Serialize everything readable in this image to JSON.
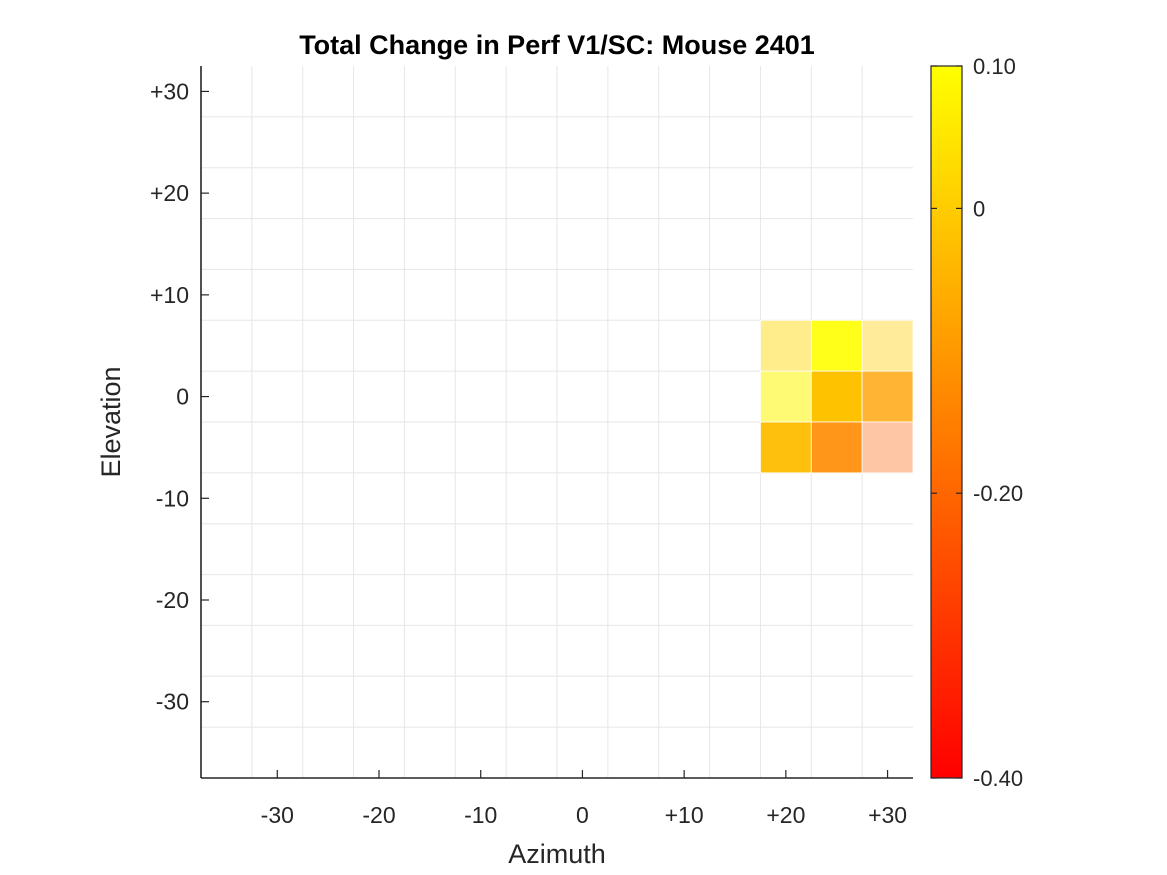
{
  "chart_data": {
    "type": "heatmap",
    "title": "Total Change in Perf V1/SC: Mouse 2401",
    "xlabel": "Azimuth",
    "ylabel": "Elevation",
    "xlim": [
      -37.5,
      32.5
    ],
    "ylim": [
      -37.5,
      32.5
    ],
    "grid": true,
    "x_ticks": [
      {
        "value": -30,
        "label": "-30"
      },
      {
        "value": -20,
        "label": "-20"
      },
      {
        "value": -10,
        "label": "-10"
      },
      {
        "value": 0,
        "label": "0"
      },
      {
        "value": 10,
        "label": "+10"
      },
      {
        "value": 20,
        "label": "+20"
      },
      {
        "value": 30,
        "label": "+30"
      }
    ],
    "y_ticks": [
      {
        "value": 30,
        "label": "+30"
      },
      {
        "value": 20,
        "label": "+20"
      },
      {
        "value": 10,
        "label": "+10"
      },
      {
        "value": 0,
        "label": "0"
      },
      {
        "value": -10,
        "label": "-10"
      },
      {
        "value": -20,
        "label": "-20"
      },
      {
        "value": -30,
        "label": "-30"
      }
    ],
    "cell_size": 5,
    "cells": [
      {
        "az": 20,
        "el": 5,
        "value": 0.02,
        "opacity": 0.45
      },
      {
        "az": 25,
        "el": 5,
        "value": 0.1,
        "opacity": 0.9
      },
      {
        "az": 30,
        "el": 5,
        "value": 0.0,
        "opacity": 0.4
      },
      {
        "az": 20,
        "el": 0,
        "value": 0.08,
        "opacity": 0.55
      },
      {
        "az": 25,
        "el": 0,
        "value": -0.02,
        "opacity": 1.0
      },
      {
        "az": 30,
        "el": 0,
        "value": -0.08,
        "opacity": 0.8
      },
      {
        "az": 20,
        "el": -5,
        "value": -0.03,
        "opacity": 0.95
      },
      {
        "az": 25,
        "el": -5,
        "value": -0.13,
        "opacity": 0.9
      },
      {
        "az": 30,
        "el": -5,
        "value": -0.22,
        "opacity": 0.35
      }
    ],
    "colorbar": {
      "colormap": "autumn",
      "min": -0.4,
      "max": 0.1,
      "min_color": "#ff0000",
      "max_color": "#ffff00",
      "ticks": [
        {
          "value": 0.1,
          "label": "0.10"
        },
        {
          "value": 0,
          "label": "0"
        },
        {
          "value": -0.2,
          "label": "-0.20"
        },
        {
          "value": -0.4,
          "label": "-0.40"
        }
      ]
    }
  }
}
